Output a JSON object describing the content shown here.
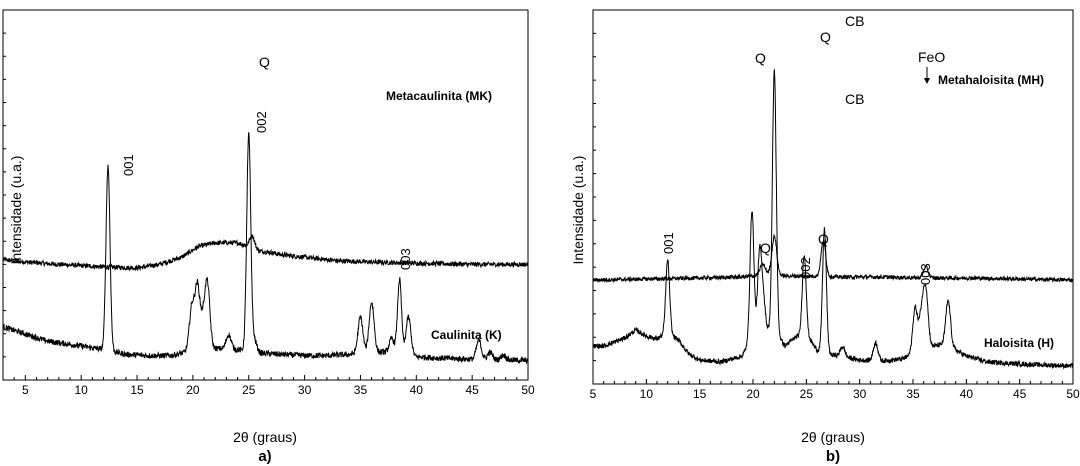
{
  "chart_data": [
    {
      "panel": "a)",
      "type": "line",
      "xlabel": "2θ (graus)",
      "ylabel": "Intensidade (u.a.)",
      "xlim": [
        3,
        50
      ],
      "xticks": [
        5,
        10,
        15,
        20,
        25,
        30,
        35,
        40,
        45,
        50
      ],
      "y_tick_labels": false,
      "series": [
        {
          "name": "Metacaulinita (MK)",
          "peaks": [
            [
              25.3,
              10
            ]
          ],
          "baseline": [
            [
              3,
              92
            ],
            [
              5,
              90
            ],
            [
              8,
              88
            ],
            [
              12,
              86
            ],
            [
              15,
              85
            ],
            [
              17,
              88
            ],
            [
              19,
              94
            ],
            [
              20.5,
              103
            ],
            [
              22,
              106
            ],
            [
              24,
              106
            ],
            [
              25,
              103
            ],
            [
              26,
              99
            ],
            [
              27,
              98
            ],
            [
              28,
              96
            ],
            [
              30,
              94
            ],
            [
              33,
              91
            ],
            [
              36,
              90
            ],
            [
              40,
              89
            ],
            [
              45,
              88
            ],
            [
              50,
              88
            ]
          ]
        },
        {
          "name": "Caulinita (K)",
          "peaks": [
            [
              12.4,
              154
            ],
            [
              19.9,
              35
            ],
            [
              20.4,
              52
            ],
            [
              21.3,
              53
            ],
            [
              20.9,
              22
            ],
            [
              23.2,
              12
            ],
            [
              25.0,
              180
            ],
            [
              25.5,
              10
            ],
            [
              35.0,
              30
            ],
            [
              36.0,
              42
            ],
            [
              38.5,
              62
            ],
            [
              39.3,
              32
            ],
            [
              37.8,
              12
            ],
            [
              45.6,
              16
            ],
            [
              46.6,
              6
            ],
            [
              47.8,
              4
            ]
          ],
          "baseline": [
            [
              3,
              36
            ],
            [
              5,
              30
            ],
            [
              7,
              24
            ],
            [
              10,
              20
            ],
            [
              12,
              17
            ],
            [
              14,
              13
            ],
            [
              16,
              12
            ],
            [
              18,
              12
            ],
            [
              19,
              14
            ],
            [
              20,
              17
            ],
            [
              22,
              18
            ],
            [
              24,
              17
            ],
            [
              26,
              14
            ],
            [
              28,
              13
            ],
            [
              30,
              12
            ],
            [
              32,
              12
            ],
            [
              34,
              13
            ],
            [
              35,
              14
            ],
            [
              37,
              15
            ],
            [
              38,
              14
            ],
            [
              40,
              11
            ],
            [
              42,
              10
            ],
            [
              45,
              9
            ],
            [
              50,
              8
            ]
          ]
        }
      ],
      "annotations": [
        {
          "text": "Q",
          "x": 25.3
        },
        {
          "text": "001",
          "x": 12.4
        },
        {
          "text": "002",
          "x": 25.0
        },
        {
          "text": "003",
          "x": 38.5
        }
      ]
    },
    {
      "panel": "b)",
      "type": "line",
      "xlabel": "2θ (graus)",
      "ylabel": "Intensidade (u.a.)",
      "xlim": [
        5,
        50
      ],
      "xticks": [
        5,
        10,
        15,
        20,
        25,
        30,
        35,
        40,
        45,
        50
      ],
      "y_tick_labels": false,
      "series": [
        {
          "name": "Metahaloisita (MH)",
          "peaks": [
            [
              20.9,
              9
            ],
            [
              22.0,
              38
            ],
            [
              26.6,
              36
            ],
            [
              36.2,
              11
            ]
          ],
          "baseline": [
            [
              5,
              92
            ],
            [
              10,
              93
            ],
            [
              15,
              94
            ],
            [
              19,
              95
            ],
            [
              20,
              96
            ],
            [
              21,
              99
            ],
            [
              22,
              98
            ],
            [
              23,
              96
            ],
            [
              25,
              96
            ],
            [
              28,
              95
            ],
            [
              32,
              95
            ],
            [
              36,
              94
            ],
            [
              40,
              94
            ],
            [
              45,
              93
            ],
            [
              50,
              92
            ]
          ]
        },
        {
          "name": "Haloisita (H)",
          "peaks": [
            [
              12.0,
              72
            ],
            [
              19.9,
              126
            ],
            [
              20.6,
              68
            ],
            [
              20.9,
              40
            ],
            [
              22.0,
              260
            ],
            [
              24.8,
              80
            ],
            [
              26.7,
              124
            ],
            [
              28.4,
              10
            ],
            [
              31.5,
              18
            ],
            [
              35.2,
              45
            ],
            [
              35.8,
              35
            ],
            [
              36.2,
              56
            ],
            [
              38.3,
              45
            ]
          ],
          "baseline": [
            [
              5,
              26
            ],
            [
              6,
              26
            ],
            [
              8,
              34
            ],
            [
              9,
              42
            ],
            [
              10,
              36
            ],
            [
              11,
              33
            ],
            [
              12,
              40
            ],
            [
              13,
              32
            ],
            [
              14,
              18
            ],
            [
              15,
              12
            ],
            [
              17,
              10
            ],
            [
              19,
              16
            ],
            [
              20,
              38
            ],
            [
              21,
              40
            ],
            [
              22,
              42
            ],
            [
              23,
              26
            ],
            [
              24,
              35
            ],
            [
              25,
              38
            ],
            [
              26,
              22
            ],
            [
              27,
              18
            ],
            [
              28,
              16
            ],
            [
              30,
              12
            ],
            [
              32,
              11
            ],
            [
              34,
              13
            ],
            [
              35,
              18
            ],
            [
              36,
              24
            ],
            [
              37,
              26
            ],
            [
              38,
              28
            ],
            [
              39,
              22
            ],
            [
              40,
              16
            ],
            [
              42,
              10
            ],
            [
              45,
              8
            ],
            [
              50,
              6
            ]
          ]
        }
      ],
      "annotations": [
        {
          "text": "CB",
          "x": 22.0
        },
        {
          "text": "Q",
          "x": 20.9
        },
        {
          "text": "Q",
          "x": 26.6
        },
        {
          "text": "FeO",
          "x": 36.2
        },
        {
          "text": "001",
          "x": 12.0
        },
        {
          "text": "Q",
          "x": 20.9
        },
        {
          "text": "002",
          "x": 24.8
        },
        {
          "text": "Q",
          "x": 26.7
        },
        {
          "text": "003",
          "x": 36.2
        },
        {
          "text": "CB",
          "x": 22.0
        }
      ]
    }
  ]
}
